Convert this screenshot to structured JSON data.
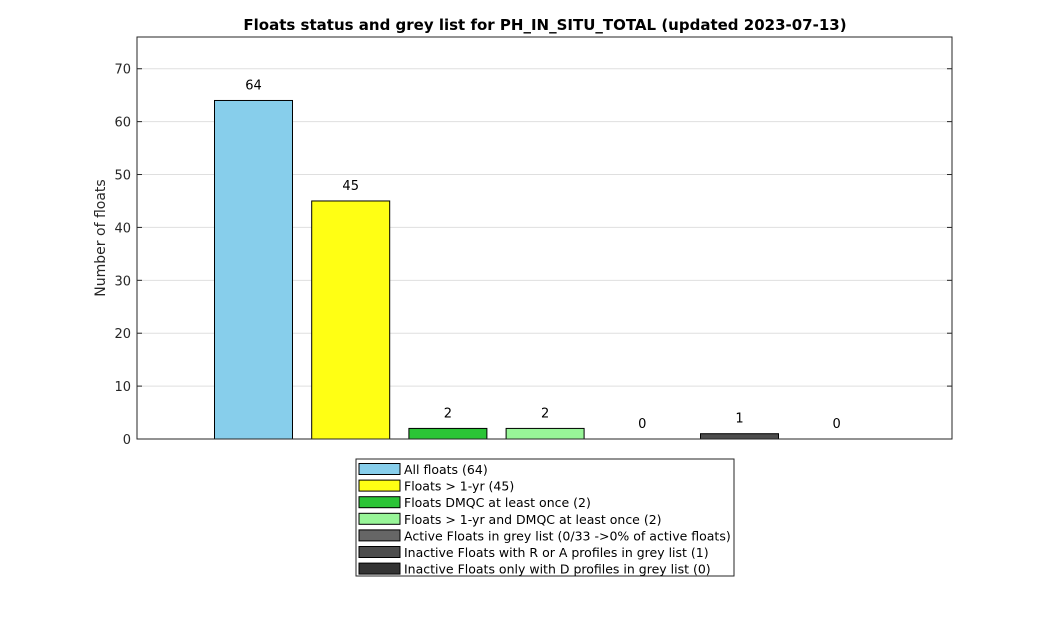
{
  "chart_data": {
    "type": "bar",
    "title": "Floats status and grey list for PH_IN_SITU_TOTAL (updated 2023-07-13)",
    "xlabel": "",
    "ylabel": "Number of floats",
    "ylim": [
      0,
      76
    ],
    "yticks": [
      0,
      10,
      20,
      30,
      40,
      50,
      60,
      70
    ],
    "grid": true,
    "legend_position": "below",
    "categories": [
      "All floats (64)",
      "Floats > 1-yr (45)",
      "Floats DMQC at least once (2)",
      "Floats > 1-yr and DMQC at least once (2)",
      "Active Floats in grey list (0/33 ->0% of active floats)",
      "Inactive Floats with R or A profiles in grey list (1)",
      "Inactive Floats only with D profiles in grey list (0)"
    ],
    "values": [
      64,
      45,
      2,
      2,
      0,
      1,
      0
    ],
    "colors": [
      "#87ceeb",
      "#ffff14",
      "#2bc436",
      "#98f598",
      "#666666",
      "#4d4d4d",
      "#333333"
    ]
  }
}
